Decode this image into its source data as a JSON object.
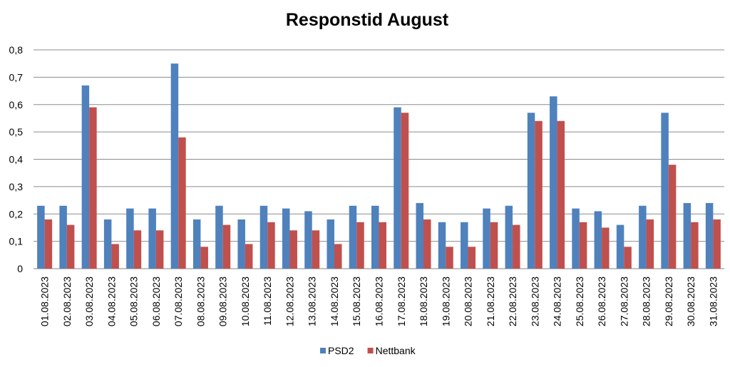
{
  "chart_data": {
    "type": "bar",
    "title": "Responstid August",
    "xlabel": "",
    "ylabel": "",
    "ylim": [
      0,
      0.8
    ],
    "yticks": [
      "0",
      "0,1",
      "0,2",
      "0,3",
      "0,4",
      "0,5",
      "0,6",
      "0,7",
      "0,8"
    ],
    "grid": true,
    "legend_position": "bottom",
    "categories": [
      "01.08.2023",
      "02.08.2023",
      "03.08.2023",
      "04.08.2023",
      "05.08.2023",
      "06.08.2023",
      "07.08.2023",
      "08.08.2023",
      "09.08.2023",
      "10.08.2023",
      "11.08.2023",
      "12.08.2023",
      "13.08.2023",
      "14.08.2023",
      "15.08.2023",
      "16.08.2023",
      "17.08.2023",
      "18.08.2023",
      "19.08.2023",
      "20.08.2023",
      "21.08.2023",
      "22.08.2023",
      "23.08.2023",
      "24.08.2023",
      "25.08.2023",
      "26.08.2023",
      "27.08.2023",
      "28.08.2023",
      "29.08.2023",
      "30.08.2023",
      "31.08.2023"
    ],
    "series": [
      {
        "name": "PSD2",
        "color": "#4F81BD",
        "values": [
          0.23,
          0.23,
          0.67,
          0.18,
          0.22,
          0.22,
          0.75,
          0.18,
          0.23,
          0.18,
          0.23,
          0.22,
          0.21,
          0.18,
          0.23,
          0.23,
          0.59,
          0.24,
          0.17,
          0.17,
          0.22,
          0.23,
          0.57,
          0.63,
          0.22,
          0.21,
          0.16,
          0.23,
          0.57,
          0.24,
          0.24
        ]
      },
      {
        "name": "Nettbank",
        "color": "#C0504D",
        "values": [
          0.18,
          0.16,
          0.59,
          0.09,
          0.14,
          0.14,
          0.48,
          0.08,
          0.16,
          0.09,
          0.17,
          0.14,
          0.14,
          0.09,
          0.17,
          0.17,
          0.57,
          0.18,
          0.08,
          0.08,
          0.17,
          0.16,
          0.54,
          0.54,
          0.17,
          0.15,
          0.08,
          0.18,
          0.38,
          0.17,
          0.18
        ]
      }
    ]
  }
}
